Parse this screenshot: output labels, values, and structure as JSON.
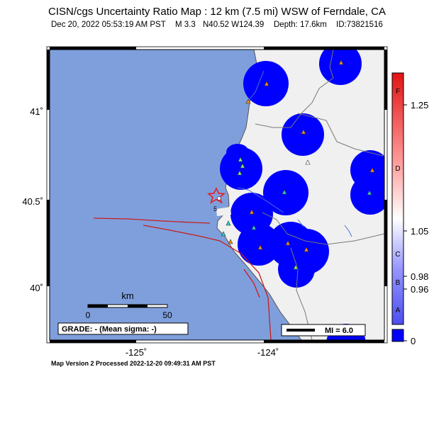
{
  "header": {
    "title": "CISN/cgs Uncertainty Ratio Map : 12 km (7.5 mi) WSW of Ferndale, CA",
    "date": "Dec 20, 2022 05:53:19 AM PST",
    "magnitude": "M 3.3",
    "location": "N40.52 W124.39",
    "depth": "Depth: 17.6km",
    "event_id": "ID:73821516"
  },
  "map": {
    "lat_labels": [
      "41˚",
      "40.5˚",
      "40˚"
    ],
    "lon_labels": [
      "-125˚",
      "-124˚"
    ],
    "scale_bar": {
      "unit": "km",
      "start": "0",
      "end": "50"
    },
    "grade_box": "GRADE: - (Mean sigma: -)",
    "mi_legend": "MI = 6.0",
    "station_label": "5"
  },
  "colorbar": {
    "letters": [
      "F",
      "D",
      "C",
      "B",
      "A"
    ],
    "values": [
      "1.25",
      "1.05",
      "0.98",
      "0.96",
      "0"
    ]
  },
  "footer": {
    "processed": "Map Version 2 Processed 2022-12-20 09:49:31 AM PST"
  },
  "colors": {
    "ocean": "#7f9fdc",
    "land": "#f0f0f0",
    "uncertainty_blue": "#0000ff",
    "epicenter": "#e8181e",
    "fault": "#c81e1e"
  }
}
